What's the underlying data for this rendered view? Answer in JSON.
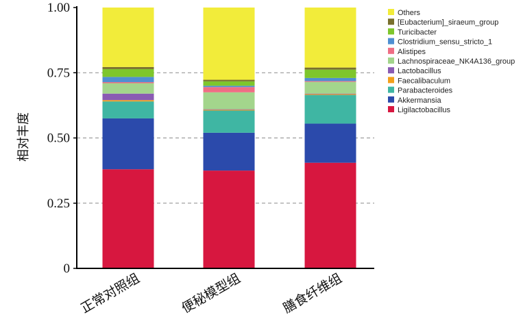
{
  "chart_data": {
    "type": "bar",
    "stacked": true,
    "ylabel": "相对丰度",
    "xlabel": "",
    "ylim": [
      0,
      1
    ],
    "yticks": [
      "0",
      "0.25",
      "0.50",
      "0.75",
      "1.00"
    ],
    "ytick_values": [
      0,
      0.25,
      0.5,
      0.75,
      1.0
    ],
    "grid": "dashed horizontal at 0.25, 0.50, 0.75",
    "legend_position": "top-right",
    "categories": [
      "正常对照组",
      "便秘模型组",
      "膳食纤维组"
    ],
    "series": [
      {
        "name": "Ligilactobacillus",
        "color": "#d7173f",
        "values": [
          0.38,
          0.375,
          0.405
        ]
      },
      {
        "name": "Akkermansia",
        "color": "#2b4aab",
        "values": [
          0.195,
          0.145,
          0.15
        ]
      },
      {
        "name": "Parabacteroides",
        "color": "#3fb6a3",
        "values": [
          0.065,
          0.085,
          0.11
        ]
      },
      {
        "name": "Faecalibaculum",
        "color": "#f3a01b",
        "values": [
          0.005,
          0.003,
          0.003
        ]
      },
      {
        "name": "Lactobacillus",
        "color": "#8a5bb3",
        "values": [
          0.025,
          0.002,
          0.002
        ]
      },
      {
        "name": "Lachnospiraceae_NK4A136_group",
        "color": "#a3d58c",
        "values": [
          0.04,
          0.065,
          0.045
        ]
      },
      {
        "name": "Alistipes",
        "color": "#ef6e84",
        "values": [
          0.004,
          0.02,
          0.003
        ]
      },
      {
        "name": "Clostridium_sensu_stricto_1",
        "color": "#4f8fd2",
        "values": [
          0.02,
          0.005,
          0.012
        ]
      },
      {
        "name": "Turicibacter",
        "color": "#7ec62c",
        "values": [
          0.03,
          0.017,
          0.032
        ]
      },
      {
        "name": "[Eubacterium]_siraeum_group",
        "color": "#79702d",
        "values": [
          0.008,
          0.006,
          0.008
        ]
      },
      {
        "name": "Others",
        "color": "#f2ec3a",
        "values": [
          0.228,
          0.277,
          0.23
        ]
      }
    ]
  }
}
